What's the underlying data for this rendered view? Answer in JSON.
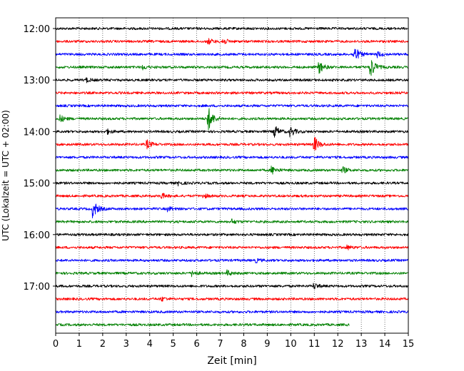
{
  "chart_data": {
    "type": "line",
    "title": "",
    "xlabel": "Zeit  [min]",
    "ylabel": "UTC (Lokalzeit = UTC + 02:00)",
    "xlim": [
      0,
      15
    ],
    "x_ticks": [
      "0",
      "1",
      "2",
      "3",
      "4",
      "5",
      "6",
      "7",
      "8",
      "9",
      "10",
      "11",
      "12",
      "13",
      "14",
      "15"
    ],
    "y_ticks": [
      "12:00",
      "13:00",
      "14:00",
      "15:00",
      "16:00",
      "17:00"
    ],
    "grid": "x-dotted",
    "trace_interval_min": 15,
    "series_colors": [
      "#000000",
      "#ff0000",
      "#0000ff",
      "#008000"
    ],
    "traces": [
      {
        "start": "12:00",
        "end_min": 15,
        "events": []
      },
      {
        "start": "12:15",
        "end_min": 15,
        "events": [
          [
            6.5,
            0.4
          ],
          [
            7.1,
            0.5
          ]
        ]
      },
      {
        "start": "12:30",
        "end_min": 15,
        "events": [
          [
            12.7,
            1.3
          ],
          [
            13.7,
            0.4
          ]
        ]
      },
      {
        "start": "12:45",
        "end_min": 15,
        "events": [
          [
            3.7,
            0.3
          ],
          [
            11.2,
            1.0
          ],
          [
            13.4,
            1.6
          ]
        ]
      },
      {
        "start": "13:00",
        "end_min": 15,
        "events": [
          [
            1.3,
            0.3
          ]
        ]
      },
      {
        "start": "13:15",
        "end_min": 15,
        "events": []
      },
      {
        "start": "13:30",
        "end_min": 15,
        "events": []
      },
      {
        "start": "13:45",
        "end_min": 15,
        "events": [
          [
            0.2,
            0.5
          ],
          [
            6.5,
            1.8
          ]
        ]
      },
      {
        "start": "14:00",
        "end_min": 15,
        "events": [
          [
            2.2,
            0.3
          ],
          [
            9.3,
            1.0
          ],
          [
            10.0,
            0.7
          ]
        ]
      },
      {
        "start": "14:15",
        "end_min": 15,
        "events": [
          [
            3.9,
            0.6
          ],
          [
            11.0,
            1.2
          ]
        ]
      },
      {
        "start": "14:30",
        "end_min": 15,
        "events": []
      },
      {
        "start": "14:45",
        "end_min": 15,
        "events": [
          [
            9.2,
            0.6
          ],
          [
            12.2,
            0.5
          ]
        ]
      },
      {
        "start": "15:00",
        "end_min": 15,
        "events": [
          [
            5.2,
            0.3
          ]
        ]
      },
      {
        "start": "15:15",
        "end_min": 15,
        "events": [
          [
            4.5,
            0.4
          ],
          [
            6.3,
            0.3
          ]
        ]
      },
      {
        "start": "15:30",
        "end_min": 15,
        "events": [
          [
            1.6,
            1.3
          ],
          [
            4.8,
            0.3
          ]
        ]
      },
      {
        "start": "15:45",
        "end_min": 15,
        "events": [
          [
            7.5,
            0.3
          ]
        ]
      },
      {
        "start": "16:00",
        "end_min": 15,
        "events": []
      },
      {
        "start": "16:15",
        "end_min": 15,
        "events": [
          [
            12.4,
            0.3
          ]
        ]
      },
      {
        "start": "16:30",
        "end_min": 15,
        "events": [
          [
            8.5,
            0.3
          ]
        ]
      },
      {
        "start": "16:45",
        "end_min": 15,
        "events": [
          [
            5.8,
            0.4
          ],
          [
            7.3,
            0.4
          ]
        ]
      },
      {
        "start": "17:00",
        "end_min": 15,
        "events": [
          [
            11.0,
            0.4
          ]
        ]
      },
      {
        "start": "17:15",
        "end_min": 15,
        "events": [
          [
            4.5,
            0.3
          ]
        ]
      },
      {
        "start": "17:30",
        "end_min": 15,
        "events": []
      },
      {
        "start": "17:45",
        "end_min": 12.5,
        "events": []
      }
    ]
  }
}
